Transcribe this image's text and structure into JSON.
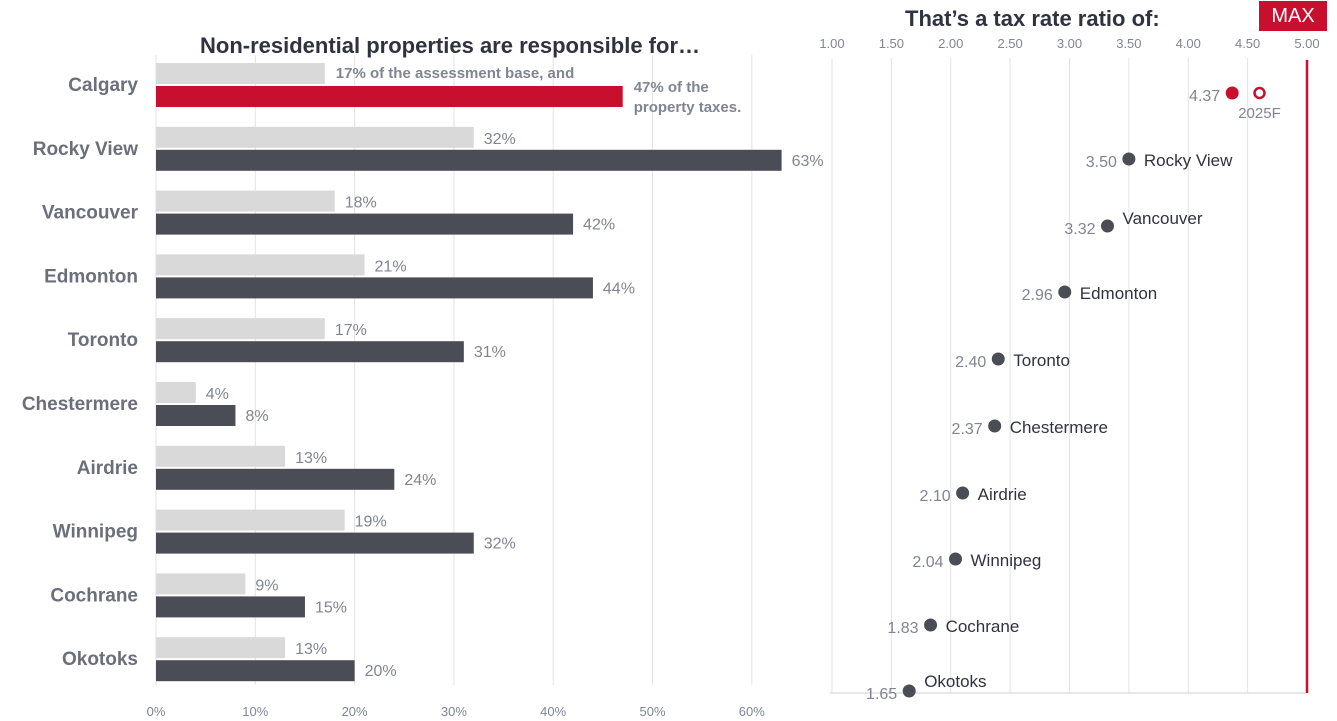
{
  "left_chart": {
    "title": "Non-residential properties are responsible for…"
  },
  "right_chart": {
    "title": "That’s a tax rate ratio of:",
    "max_badge": "MAX"
  },
  "colors": {
    "highlight": "#c8102e",
    "dark_bar": "#4a4d55",
    "light_bar": "#d9d9d9",
    "label_gray": "#808591",
    "category_text": "#6b6f7a",
    "grid": "#e3e3e3",
    "text": "#2f3340"
  },
  "chart_data": [
    {
      "type": "bar",
      "orientation": "horizontal",
      "title": "Non-residential properties are responsible for…",
      "categories": [
        "Calgary",
        "Rocky View",
        "Vancouver",
        "Edmonton",
        "Toronto",
        "Chestermere",
        "Airdrie",
        "Winnipeg",
        "Cochrane",
        "Okotoks"
      ],
      "series": [
        {
          "values": [
            17,
            32,
            18,
            21,
            17,
            4,
            13,
            19,
            9,
            13
          ],
          "labels": [
            "17% of the assessment base, and",
            "32%",
            "18%",
            "21%",
            "17%",
            "4%",
            "13%",
            "19%",
            "9%",
            "13%"
          ]
        },
        {
          "values": [
            47,
            63,
            42,
            44,
            31,
            8,
            24,
            32,
            15,
            20
          ],
          "labels": [
            "47% of the property taxes.",
            "63%",
            "42%",
            "44%",
            "31%",
            "8%",
            "24%",
            "32%",
            "15%",
            "20%"
          ]
        }
      ],
      "highlight_category": "Calgary",
      "xlim": [
        0,
        65
      ],
      "x_ticks": [
        "0%",
        "10%",
        "20%",
        "30%",
        "40%",
        "50%",
        "60%"
      ],
      "x_tick_values": [
        0,
        10,
        20,
        30,
        40,
        50,
        60
      ],
      "grid": true
    },
    {
      "type": "scatter",
      "title": "That’s a tax rate ratio of:",
      "categories": [
        "Calgary",
        "Rocky View",
        "Vancouver",
        "Edmonton",
        "Toronto",
        "Chestermere",
        "Airdrie",
        "Winnipeg",
        "Cochrane",
        "Okotoks"
      ],
      "values": [
        4.37,
        3.5,
        3.32,
        2.96,
        2.4,
        2.37,
        2.1,
        2.04,
        1.83,
        1.65
      ],
      "value_labels": [
        "4.37",
        "3.50",
        "3.32",
        "2.96",
        "2.40",
        "2.37",
        "2.10",
        "2.04",
        "1.83",
        "1.65"
      ],
      "point_names": [
        "",
        "Rocky View",
        "Vancouver",
        "Edmonton",
        "Toronto",
        "Chestermere",
        "Airdrie",
        "Winnipeg",
        "Cochrane",
        "Okotoks"
      ],
      "forecast": {
        "label": "2025F",
        "value": 4.6
      },
      "max_value": 5.0,
      "xlim": [
        1.0,
        5.0
      ],
      "x_ticks": [
        "1.00",
        "1.50",
        "2.00",
        "2.50",
        "3.00",
        "3.50",
        "4.00",
        "4.50",
        "5.00"
      ],
      "x_tick_values": [
        1.0,
        1.5,
        2.0,
        2.5,
        3.0,
        3.5,
        4.0,
        4.5,
        5.0
      ],
      "x_axis_position": "top",
      "grid": true
    }
  ]
}
